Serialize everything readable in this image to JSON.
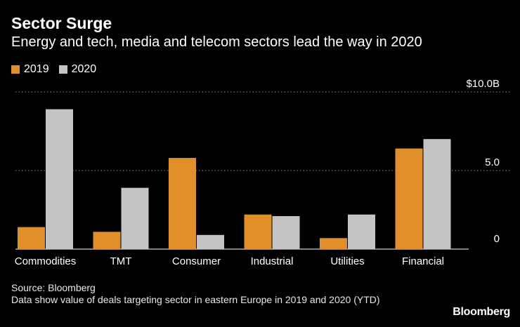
{
  "header": {
    "title": "Sector Surge",
    "subtitle": "Energy and tech, media and telecom sectors lead the way in 2020"
  },
  "legend": [
    {
      "label": "2019",
      "color": "#e18f2a"
    },
    {
      "label": "2020",
      "color": "#c4c4c4"
    }
  ],
  "footer": {
    "source": "Source: Bloomberg",
    "note": "Data show value of deals targeting sector in eastern Europe in 2019 and 2020 (YTD)"
  },
  "brand": {
    "logo_text": "Bloomberg"
  },
  "chart_data": {
    "type": "bar",
    "title": "Sector Surge",
    "subtitle": "Energy and tech, media and telecom sectors lead the way in 2020",
    "xlabel": "",
    "ylabel": "",
    "categories": [
      "Commodities",
      "TMT",
      "Consumer",
      "Industrial",
      "Utilities",
      "Financial"
    ],
    "series": [
      {
        "name": "2019",
        "color": "#e18f2a",
        "values": [
          1.4,
          1.1,
          5.8,
          2.2,
          0.7,
          6.4
        ]
      },
      {
        "name": "2020",
        "color": "#c4c4c4",
        "values": [
          8.9,
          3.9,
          0.9,
          2.1,
          2.2,
          7.0
        ]
      }
    ],
    "ylim": [
      0,
      10
    ],
    "yticks": [
      {
        "value": 10,
        "label": "$10.0B"
      },
      {
        "value": 5,
        "label": "5.0"
      },
      {
        "value": 0,
        "label": "0"
      }
    ],
    "grid": true,
    "legend_position": "top-left"
  }
}
